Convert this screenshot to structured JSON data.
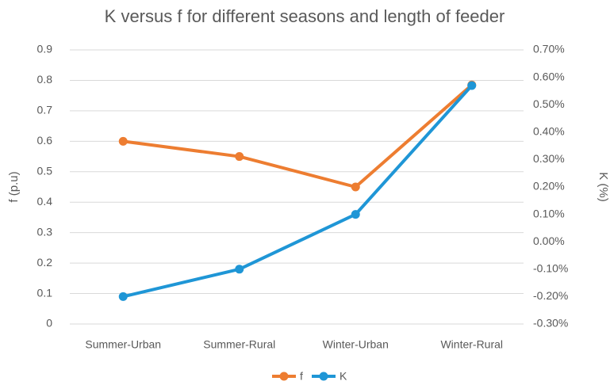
{
  "chart_data": {
    "type": "line",
    "title": "K versus f for different seasons and length of feeder",
    "ylabel": "f (p.u)",
    "y2label": "K (%)",
    "categories": [
      "Summer-Urban",
      "Summer-Rural",
      "Winter-Urban",
      "Winter-Rural"
    ],
    "series": [
      {
        "name": "f",
        "color": "#ed7d31",
        "values": [
          0.6,
          0.55,
          0.45,
          0.785
        ]
      },
      {
        "name": "K",
        "color": "#1f96d6",
        "values": [
          -0.2,
          -0.1,
          0.1,
          0.57
        ],
        "axis": "y2"
      }
    ],
    "ylim": [
      0,
      0.9
    ],
    "yticks": [
      0,
      0.1,
      0.2,
      0.3,
      0.4,
      0.5,
      0.6,
      0.7,
      0.8,
      0.9
    ],
    "y2lim": [
      -0.3,
      0.7
    ],
    "y2ticks": [
      {
        "value": -0.3,
        "label": "-0.30%"
      },
      {
        "value": -0.2,
        "label": "-0.20%"
      },
      {
        "value": -0.1,
        "label": "-0.10%"
      },
      {
        "value": 0,
        "label": "0.00%"
      },
      {
        "value": 0.1,
        "label": "0.10%"
      },
      {
        "value": 0.2,
        "label": "0.20%"
      },
      {
        "value": 0.3,
        "label": "0.30%"
      },
      {
        "value": 0.4,
        "label": "0.40%"
      },
      {
        "value": 0.5,
        "label": "0.50%"
      },
      {
        "value": 0.6,
        "label": "0.60%"
      },
      {
        "value": 0.7,
        "label": "0.70%"
      }
    ],
    "grid": true,
    "legend": "bottom"
  }
}
